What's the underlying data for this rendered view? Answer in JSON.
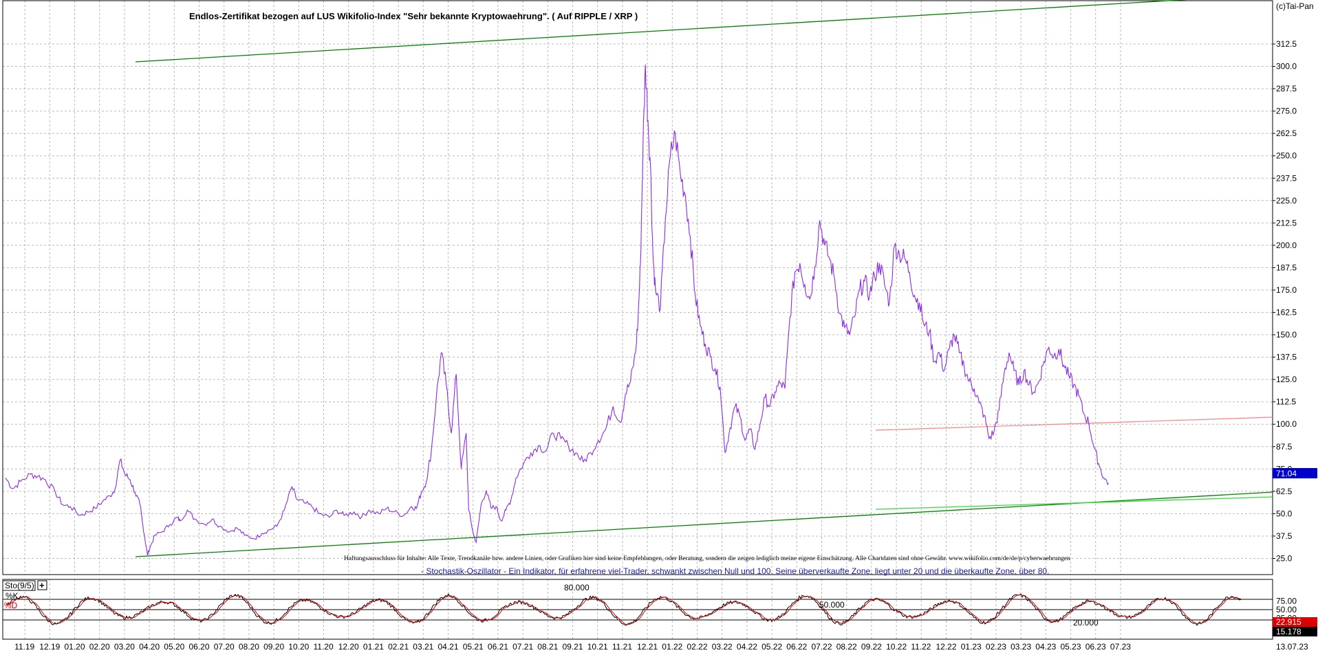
{
  "header": {
    "title": "Endlos-Zertifikat bezogen auf LUS Wikifolio-Index \"Sehr bekannte Kryptowaehrung\". ( Auf RIPPLE / XRP )",
    "copyright": "(c)Tai-Pan"
  },
  "notes": {
    "disclaimer": "Haftungsausschluss für Inhalte: Alle Texte, Trendkanäle bzw. andere Linien, oder Grafiken hier sind keine Empfehlungen, oder Beratung, sondern die zeigen lediglich meine eigene Einschätzung. Alle Chartdaten sind ohne Gewähr. www.wikifolio.com/de/de/p/cyberwaehrungen",
    "stochastic": "- Stochastik-Oszillator - Ein Indikator, für erfahrene viel-Trader, schwankt zwischen Null und 100. Seine überverkaufte Zone, liegt unter 20 und die überkaufte Zone, über 80."
  },
  "colors": {
    "price": "#8a2be2",
    "channel": "#008000",
    "channel_light": "#33dd33",
    "resistance": "#ff8080",
    "grid": "#b8b8b8",
    "k_line": "#000000",
    "d_line": "#dd0000",
    "current_price_bg": "#0000cc",
    "d_value_bg": "#dd0000",
    "k_value_bg": "#000000"
  },
  "chart_data": [
    {
      "type": "line",
      "name": "price",
      "y_ticks": [
        "312.5",
        "300.0",
        "287.5",
        "275.0",
        "262.5",
        "250.0",
        "237.5",
        "225.0",
        "212.5",
        "200.0",
        "187.5",
        "175.0",
        "162.5",
        "150.0",
        "137.5",
        "125.0",
        "112.5",
        "100.0",
        "87.5",
        "75.0",
        "62.5",
        "50.0",
        "37.5",
        "25.0"
      ],
      "ylim": [
        23,
        318
      ],
      "x_labels": [
        "11.19",
        "12.19",
        "01.20",
        "02.20",
        "03.20",
        "04.20",
        "05.20",
        "06.20",
        "07.20",
        "08.20",
        "09.20",
        "10.20",
        "11.20",
        "12.20",
        "01.21",
        "02.21",
        "03.21",
        "04.21",
        "05.21",
        "06.21",
        "07.21",
        "08.21",
        "09.21",
        "10.21",
        "11.21",
        "12.21",
        "01.22",
        "02.22",
        "03.22",
        "04.22",
        "05.22",
        "06.22",
        "07.22",
        "08.22",
        "09.22",
        "10.22",
        "11.22",
        "12.22",
        "01.23",
        "02.23",
        "03.23",
        "04.23",
        "05.23",
        "06.23",
        "07.23"
      ],
      "x_range_months": [
        0,
        45
      ],
      "last_date": "13.07.23",
      "last_value": "71.04",
      "series_points": [
        [
          0.0,
          70
        ],
        [
          0.3,
          64
        ],
        [
          0.6,
          68
        ],
        [
          1.0,
          72
        ],
        [
          1.3,
          71
        ],
        [
          1.6,
          69
        ],
        [
          2.0,
          62
        ],
        [
          2.3,
          55
        ],
        [
          2.6,
          54
        ],
        [
          3.0,
          49
        ],
        [
          3.3,
          51
        ],
        [
          3.6,
          53
        ],
        [
          3.9,
          57
        ],
        [
          4.2,
          60
        ],
        [
          4.4,
          64
        ],
        [
          4.6,
          80
        ],
        [
          4.8,
          72
        ],
        [
          5.0,
          69
        ],
        [
          5.2,
          62
        ],
        [
          5.4,
          55
        ],
        [
          5.5,
          45
        ],
        [
          5.6,
          36
        ],
        [
          5.7,
          27
        ],
        [
          5.8,
          31
        ],
        [
          6.0,
          38
        ],
        [
          6.3,
          40
        ],
        [
          6.6,
          44
        ],
        [
          6.9,
          48
        ],
        [
          7.0,
          46
        ],
        [
          7.3,
          52
        ],
        [
          7.6,
          47
        ],
        [
          8.0,
          44
        ],
        [
          8.3,
          47
        ],
        [
          8.6,
          43
        ],
        [
          9.0,
          40
        ],
        [
          9.3,
          42
        ],
        [
          9.6,
          38
        ],
        [
          10.0,
          36
        ],
        [
          10.3,
          39
        ],
        [
          10.6,
          41
        ],
        [
          10.9,
          43
        ],
        [
          11.2,
          52
        ],
        [
          11.5,
          65
        ],
        [
          11.7,
          58
        ],
        [
          12.0,
          56
        ],
        [
          12.3,
          54
        ],
        [
          12.6,
          50
        ],
        [
          13.0,
          48
        ],
        [
          13.3,
          52
        ],
        [
          13.6,
          49
        ],
        [
          14.0,
          51
        ],
        [
          14.3,
          48
        ],
        [
          14.6,
          52
        ],
        [
          15.0,
          50
        ],
        [
          15.3,
          53
        ],
        [
          15.6,
          51
        ],
        [
          16.0,
          49
        ],
        [
          16.3,
          54
        ],
        [
          16.5,
          53
        ],
        [
          16.7,
          62
        ],
        [
          16.9,
          68
        ],
        [
          17.1,
          85
        ],
        [
          17.3,
          115
        ],
        [
          17.5,
          140
        ],
        [
          17.7,
          122
        ],
        [
          17.9,
          95
        ],
        [
          18.1,
          128
        ],
        [
          18.3,
          75
        ],
        [
          18.5,
          95
        ],
        [
          18.6,
          52
        ],
        [
          18.8,
          38
        ],
        [
          18.9,
          34
        ],
        [
          19.1,
          55
        ],
        [
          19.3,
          63
        ],
        [
          19.5,
          53
        ],
        [
          19.7,
          54
        ],
        [
          19.9,
          46
        ],
        [
          20.1,
          52
        ],
        [
          20.3,
          58
        ],
        [
          20.5,
          70
        ],
        [
          20.8,
          78
        ],
        [
          21.1,
          84
        ],
        [
          21.4,
          88
        ],
        [
          21.7,
          85
        ],
        [
          22.0,
          95
        ],
        [
          22.3,
          92
        ],
        [
          22.6,
          88
        ],
        [
          22.9,
          84
        ],
        [
          23.2,
          79
        ],
        [
          23.5,
          84
        ],
        [
          23.8,
          91
        ],
        [
          24.1,
          97
        ],
        [
          24.4,
          110
        ],
        [
          24.7,
          101
        ],
        [
          24.9,
          117
        ],
        [
          25.1,
          124
        ],
        [
          25.3,
          140
        ],
        [
          25.4,
          158
        ],
        [
          25.5,
          190
        ],
        [
          25.6,
          255
        ],
        [
          25.7,
          301
        ],
        [
          25.8,
          270
        ],
        [
          25.9,
          245
        ],
        [
          26.0,
          195
        ],
        [
          26.1,
          175
        ],
        [
          26.3,
          165
        ],
        [
          26.5,
          215
        ],
        [
          26.7,
          250
        ],
        [
          26.9,
          262
        ],
        [
          27.1,
          240
        ],
        [
          27.3,
          228
        ],
        [
          27.5,
          205
        ],
        [
          27.7,
          172
        ],
        [
          27.9,
          155
        ],
        [
          28.1,
          145
        ],
        [
          28.3,
          138
        ],
        [
          28.5,
          131
        ],
        [
          28.7,
          121
        ],
        [
          28.9,
          84
        ],
        [
          29.1,
          98
        ],
        [
          29.3,
          110
        ],
        [
          29.5,
          104
        ],
        [
          29.7,
          91
        ],
        [
          29.9,
          97
        ],
        [
          30.1,
          86
        ],
        [
          30.3,
          100
        ],
        [
          30.5,
          115
        ],
        [
          30.7,
          110
        ],
        [
          30.9,
          118
        ],
        [
          31.1,
          123
        ],
        [
          31.3,
          120
        ],
        [
          31.5,
          160
        ],
        [
          31.7,
          185
        ],
        [
          31.9,
          190
        ],
        [
          32.1,
          178
        ],
        [
          32.3,
          170
        ],
        [
          32.5,
          188
        ],
        [
          32.7,
          214
        ],
        [
          32.9,
          200
        ],
        [
          33.1,
          192
        ],
        [
          33.3,
          181
        ],
        [
          33.5,
          162
        ],
        [
          33.7,
          154
        ],
        [
          33.9,
          150
        ],
        [
          34.1,
          160
        ],
        [
          34.3,
          175
        ],
        [
          34.5,
          180
        ],
        [
          34.7,
          172
        ],
        [
          34.9,
          183
        ],
        [
          35.1,
          190
        ],
        [
          35.3,
          178
        ],
        [
          35.5,
          168
        ],
        [
          35.7,
          200
        ],
        [
          35.9,
          195
        ],
        [
          36.1,
          193
        ],
        [
          36.3,
          185
        ],
        [
          36.5,
          172
        ],
        [
          36.7,
          168
        ],
        [
          36.9,
          155
        ],
        [
          37.1,
          152
        ],
        [
          37.3,
          135
        ],
        [
          37.5,
          140
        ],
        [
          37.7,
          130
        ],
        [
          37.9,
          142
        ],
        [
          38.1,
          150
        ],
        [
          38.3,
          140
        ],
        [
          38.5,
          132
        ],
        [
          38.7,
          124
        ],
        [
          38.9,
          120
        ],
        [
          39.1,
          112
        ],
        [
          39.3,
          105
        ],
        [
          39.5,
          92
        ],
        [
          39.7,
          96
        ],
        [
          39.9,
          108
        ],
        [
          40.1,
          128
        ],
        [
          40.3,
          140
        ],
        [
          40.5,
          130
        ],
        [
          40.7,
          122
        ],
        [
          40.9,
          130
        ],
        [
          41.1,
          122
        ],
        [
          41.3,
          118
        ],
        [
          41.5,
          124
        ],
        [
          41.7,
          135
        ],
        [
          41.9,
          143
        ],
        [
          42.1,
          138
        ],
        [
          42.3,
          142
        ],
        [
          42.5,
          133
        ],
        [
          42.7,
          127
        ],
        [
          42.9,
          122
        ],
        [
          43.1,
          116
        ],
        [
          43.3,
          106
        ],
        [
          43.5,
          101
        ],
        [
          43.7,
          88
        ],
        [
          43.9,
          78
        ],
        [
          44.1,
          70
        ],
        [
          44.3,
          67
        ]
      ]
    },
    {
      "type": "line",
      "name": "Sto(9/5)",
      "series": [
        {
          "name": "%K"
        },
        {
          "name": "%D"
        }
      ],
      "k_value": "15.178",
      "d_value": "22.915",
      "ylim": [
        0,
        100
      ],
      "y_ticks": [
        "75.00",
        "50.00",
        "25.00"
      ],
      "levels": [
        "80.000",
        "50.000",
        "20.000"
      ]
    }
  ]
}
